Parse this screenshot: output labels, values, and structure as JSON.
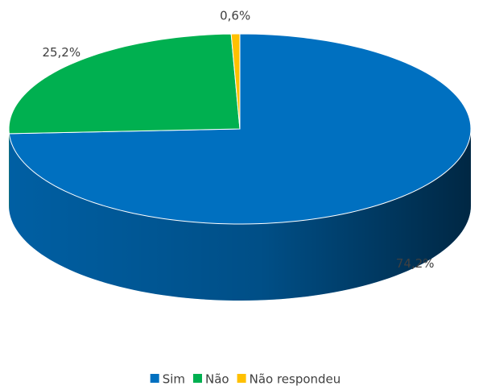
{
  "chart_data": {
    "type": "pie3d",
    "categories": [
      "Sim",
      "Não",
      "Não respondeu"
    ],
    "values": [
      74.2,
      25.2,
      0.6
    ],
    "value_labels": [
      "74,2%",
      "25,2%",
      "0,6%"
    ],
    "colors": [
      "#0070c0",
      "#00b050",
      "#ffc000"
    ],
    "legend": "bottom"
  }
}
